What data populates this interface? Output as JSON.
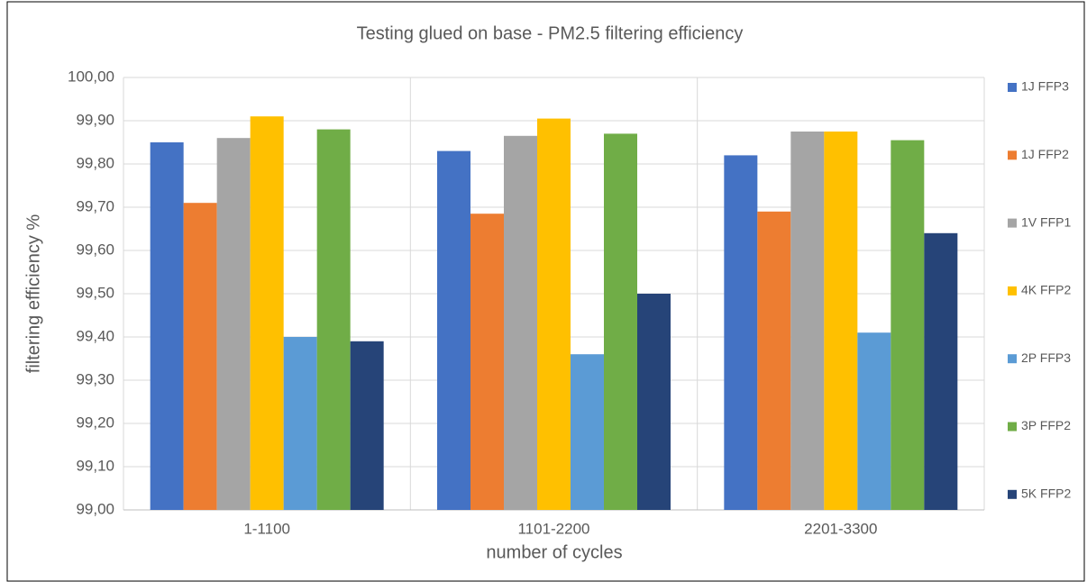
{
  "chart_data": {
    "type": "bar",
    "title": "Testing glued on base - PM2.5 filtering efficiency",
    "x_label": "number of cycles",
    "y_label": "filtering efficiency %",
    "categories": [
      "1-1100",
      "1101-2200",
      "2201-3300"
    ],
    "series": [
      {
        "name": "1J FFP3",
        "color": "#4472c4",
        "values": [
          99.85,
          99.83,
          99.82
        ]
      },
      {
        "name": "1J FFP2",
        "color": "#ed7d31",
        "values": [
          99.71,
          99.685,
          99.69
        ]
      },
      {
        "name": "1V FFP1",
        "color": "#a5a5a5",
        "values": [
          99.86,
          99.865,
          99.875
        ]
      },
      {
        "name": "4K FFP2",
        "color": "#ffc000",
        "values": [
          99.91,
          99.905,
          99.875
        ]
      },
      {
        "name": "2P FFP3",
        "color": "#5b9bd5",
        "values": [
          99.4,
          99.36,
          99.41
        ]
      },
      {
        "name": "3P FFP2",
        "color": "#70ad47",
        "values": [
          99.88,
          99.87,
          99.855
        ]
      },
      {
        "name": "5K FFP2",
        "color": "#264478",
        "values": [
          99.39,
          99.5,
          99.64
        ]
      }
    ],
    "ylim": [
      99.0,
      100.0
    ],
    "yticks": [
      {
        "value": 99.0,
        "label": "99,00"
      },
      {
        "value": 99.1,
        "label": "99,10"
      },
      {
        "value": 99.2,
        "label": "99,20"
      },
      {
        "value": 99.3,
        "label": "99,30"
      },
      {
        "value": 99.4,
        "label": "99,40"
      },
      {
        "value": 99.5,
        "label": "99,50"
      },
      {
        "value": 99.6,
        "label": "99,60"
      },
      {
        "value": 99.7,
        "label": "99,70"
      },
      {
        "value": 99.8,
        "label": "99,80"
      },
      {
        "value": 99.9,
        "label": "99,90"
      },
      {
        "value": 100.0,
        "label": "100,00"
      }
    ],
    "grid": true,
    "legend": "right"
  }
}
